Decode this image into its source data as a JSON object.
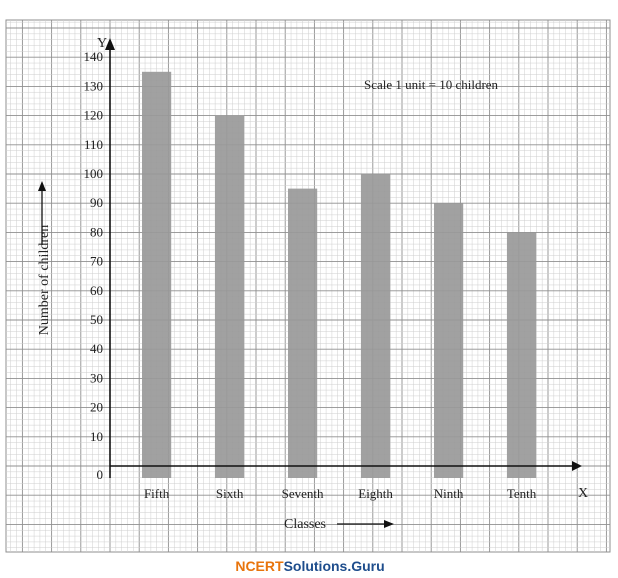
{
  "chart_data": {
    "type": "bar",
    "categories": [
      "Fifth",
      "Sixth",
      "Seventh",
      "Eighth",
      "Ninth",
      "Tenth"
    ],
    "values": [
      135,
      120,
      95,
      100,
      90,
      80
    ],
    "y_ticks": [
      "0",
      "10",
      "20",
      "30",
      "40",
      "50",
      "60",
      "70",
      "80",
      "90",
      "100",
      "110",
      "120",
      "130",
      "140"
    ],
    "ylim": [
      0,
      140
    ],
    "xlabel": "Classes",
    "ylabel": "Number of children",
    "x_axis_letter": "X",
    "y_axis_letter": "Y",
    "annotation": "Scale 1 unit = 10 children",
    "grid": true
  },
  "colors": {
    "bar": "#999999",
    "grid_minor": "#cfcfcf",
    "grid_major": "#8f8f8f",
    "axis": "#111111"
  },
  "watermark": {
    "part1": "NCERT",
    "part2": "Solutions.Guru"
  }
}
